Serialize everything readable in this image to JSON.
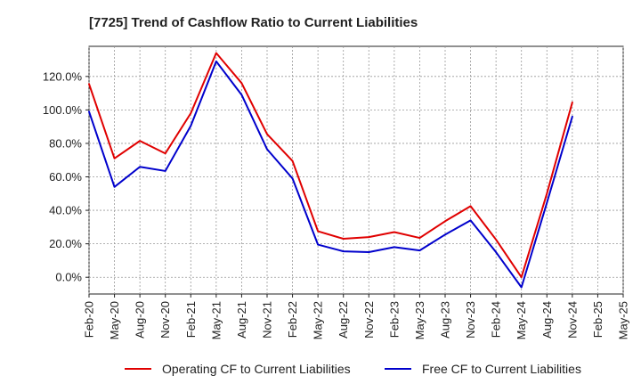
{
  "chart_data": {
    "type": "line",
    "title": "[7725]  Trend of Cashflow Ratio to Current Liabilities",
    "xlabel": "",
    "ylabel": "",
    "x": [
      "Feb-20",
      "May-20",
      "Aug-20",
      "Nov-20",
      "Feb-21",
      "May-21",
      "Aug-21",
      "Nov-21",
      "Feb-22",
      "May-22",
      "Aug-22",
      "Nov-22",
      "Feb-23",
      "May-23",
      "Aug-23",
      "Nov-23",
      "Feb-24",
      "May-24",
      "Aug-24",
      "Nov-24",
      "Feb-25",
      "May-25"
    ],
    "ylim": [
      -10,
      138
    ],
    "yticks": [
      0,
      20,
      40,
      60,
      80,
      100,
      120
    ],
    "ytick_labels": [
      "0.0%",
      "20.0%",
      "40.0%",
      "60.0%",
      "80.0%",
      "100.0%",
      "120.0%"
    ],
    "grid": true,
    "legend_position": "bottom",
    "series": [
      {
        "name": "Operating CF to Current Liabilities",
        "color": "#e00000",
        "values": [
          115.5,
          71.0,
          81.5,
          74.0,
          98.0,
          134.0,
          116.0,
          85.5,
          69.5,
          27.5,
          23.0,
          24.0,
          27.0,
          23.5,
          33.5,
          42.5,
          22.5,
          0.0,
          50.0,
          104.5,
          null,
          null
        ]
      },
      {
        "name": "Free CF to Current Liabilities",
        "color": "#0000cc",
        "values": [
          99.0,
          54.0,
          66.0,
          63.5,
          90.5,
          129.0,
          109.0,
          76.5,
          59.0,
          19.5,
          15.5,
          15.0,
          18.0,
          16.0,
          25.5,
          34.0,
          15.0,
          -6.0,
          44.5,
          96.0,
          null,
          null
        ]
      }
    ]
  }
}
